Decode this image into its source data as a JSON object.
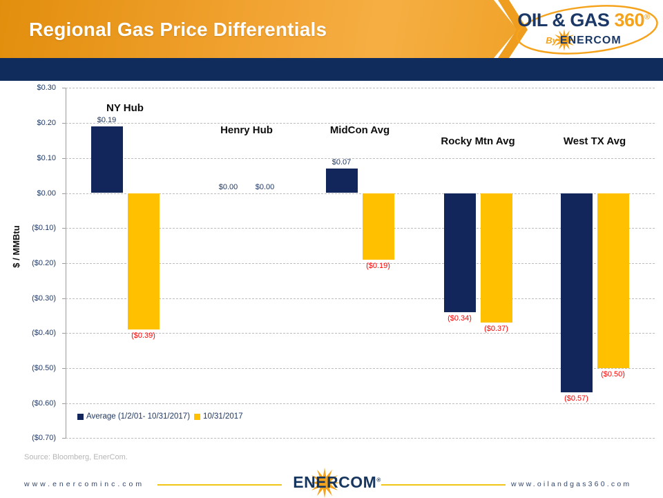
{
  "header": {
    "title": "Regional Gas Price Differentials",
    "logo": {
      "brand_main": "OIL & GAS",
      "brand_number": "360",
      "registered_mark": "®",
      "byline_prefix": "By",
      "byline_company": "ENERCOM"
    },
    "colors": {
      "banner_orange": "#f2a433",
      "band_navy": "#0f2c5c"
    }
  },
  "chart_data": {
    "type": "bar",
    "title": "",
    "xlabel": "",
    "ylabel": "$ / MMBtu",
    "ylim": [
      -0.7,
      0.3
    ],
    "ytick_step": 0.1,
    "yticks": [
      "$0.30",
      "$0.20",
      "$0.10",
      "$0.00",
      "($0.10)",
      "($0.20)",
      "($0.30)",
      "($0.40)",
      "($0.50)",
      "($0.60)",
      "($0.70)"
    ],
    "grid": "horizontal dashed",
    "legend_position": "inside bottom-left",
    "categories": [
      "NY Hub",
      "Henry Hub",
      "MidCon Avg",
      "Rocky Mtn Avg",
      "West TX Avg"
    ],
    "series": [
      {
        "name": "Average (1/2/01- 10/31/2017)",
        "color": "#12265b",
        "values": [
          0.19,
          0.0,
          0.07,
          -0.34,
          -0.57
        ],
        "labels": [
          "$0.19",
          "$0.00",
          "$0.07",
          "($0.34)",
          "($0.57)"
        ]
      },
      {
        "name": "10/31/2017",
        "color": "#ffc000",
        "values": [
          -0.39,
          0.0,
          -0.19,
          -0.37,
          -0.5
        ],
        "labels": [
          "($0.39)",
          "$0.00",
          "($0.19)",
          "($0.37)",
          "($0.50)"
        ]
      }
    ],
    "label_colors": {
      "non_negative": "#1f3864",
      "negative": "#ff0000"
    }
  },
  "source": "Source: Bloomberg, EnerCom.",
  "footer": {
    "left_url": "www.enercominc.com",
    "center_logo": "ENERCOM",
    "center_logo_reg": "®",
    "right_url": "www.oilandgas360.com"
  }
}
